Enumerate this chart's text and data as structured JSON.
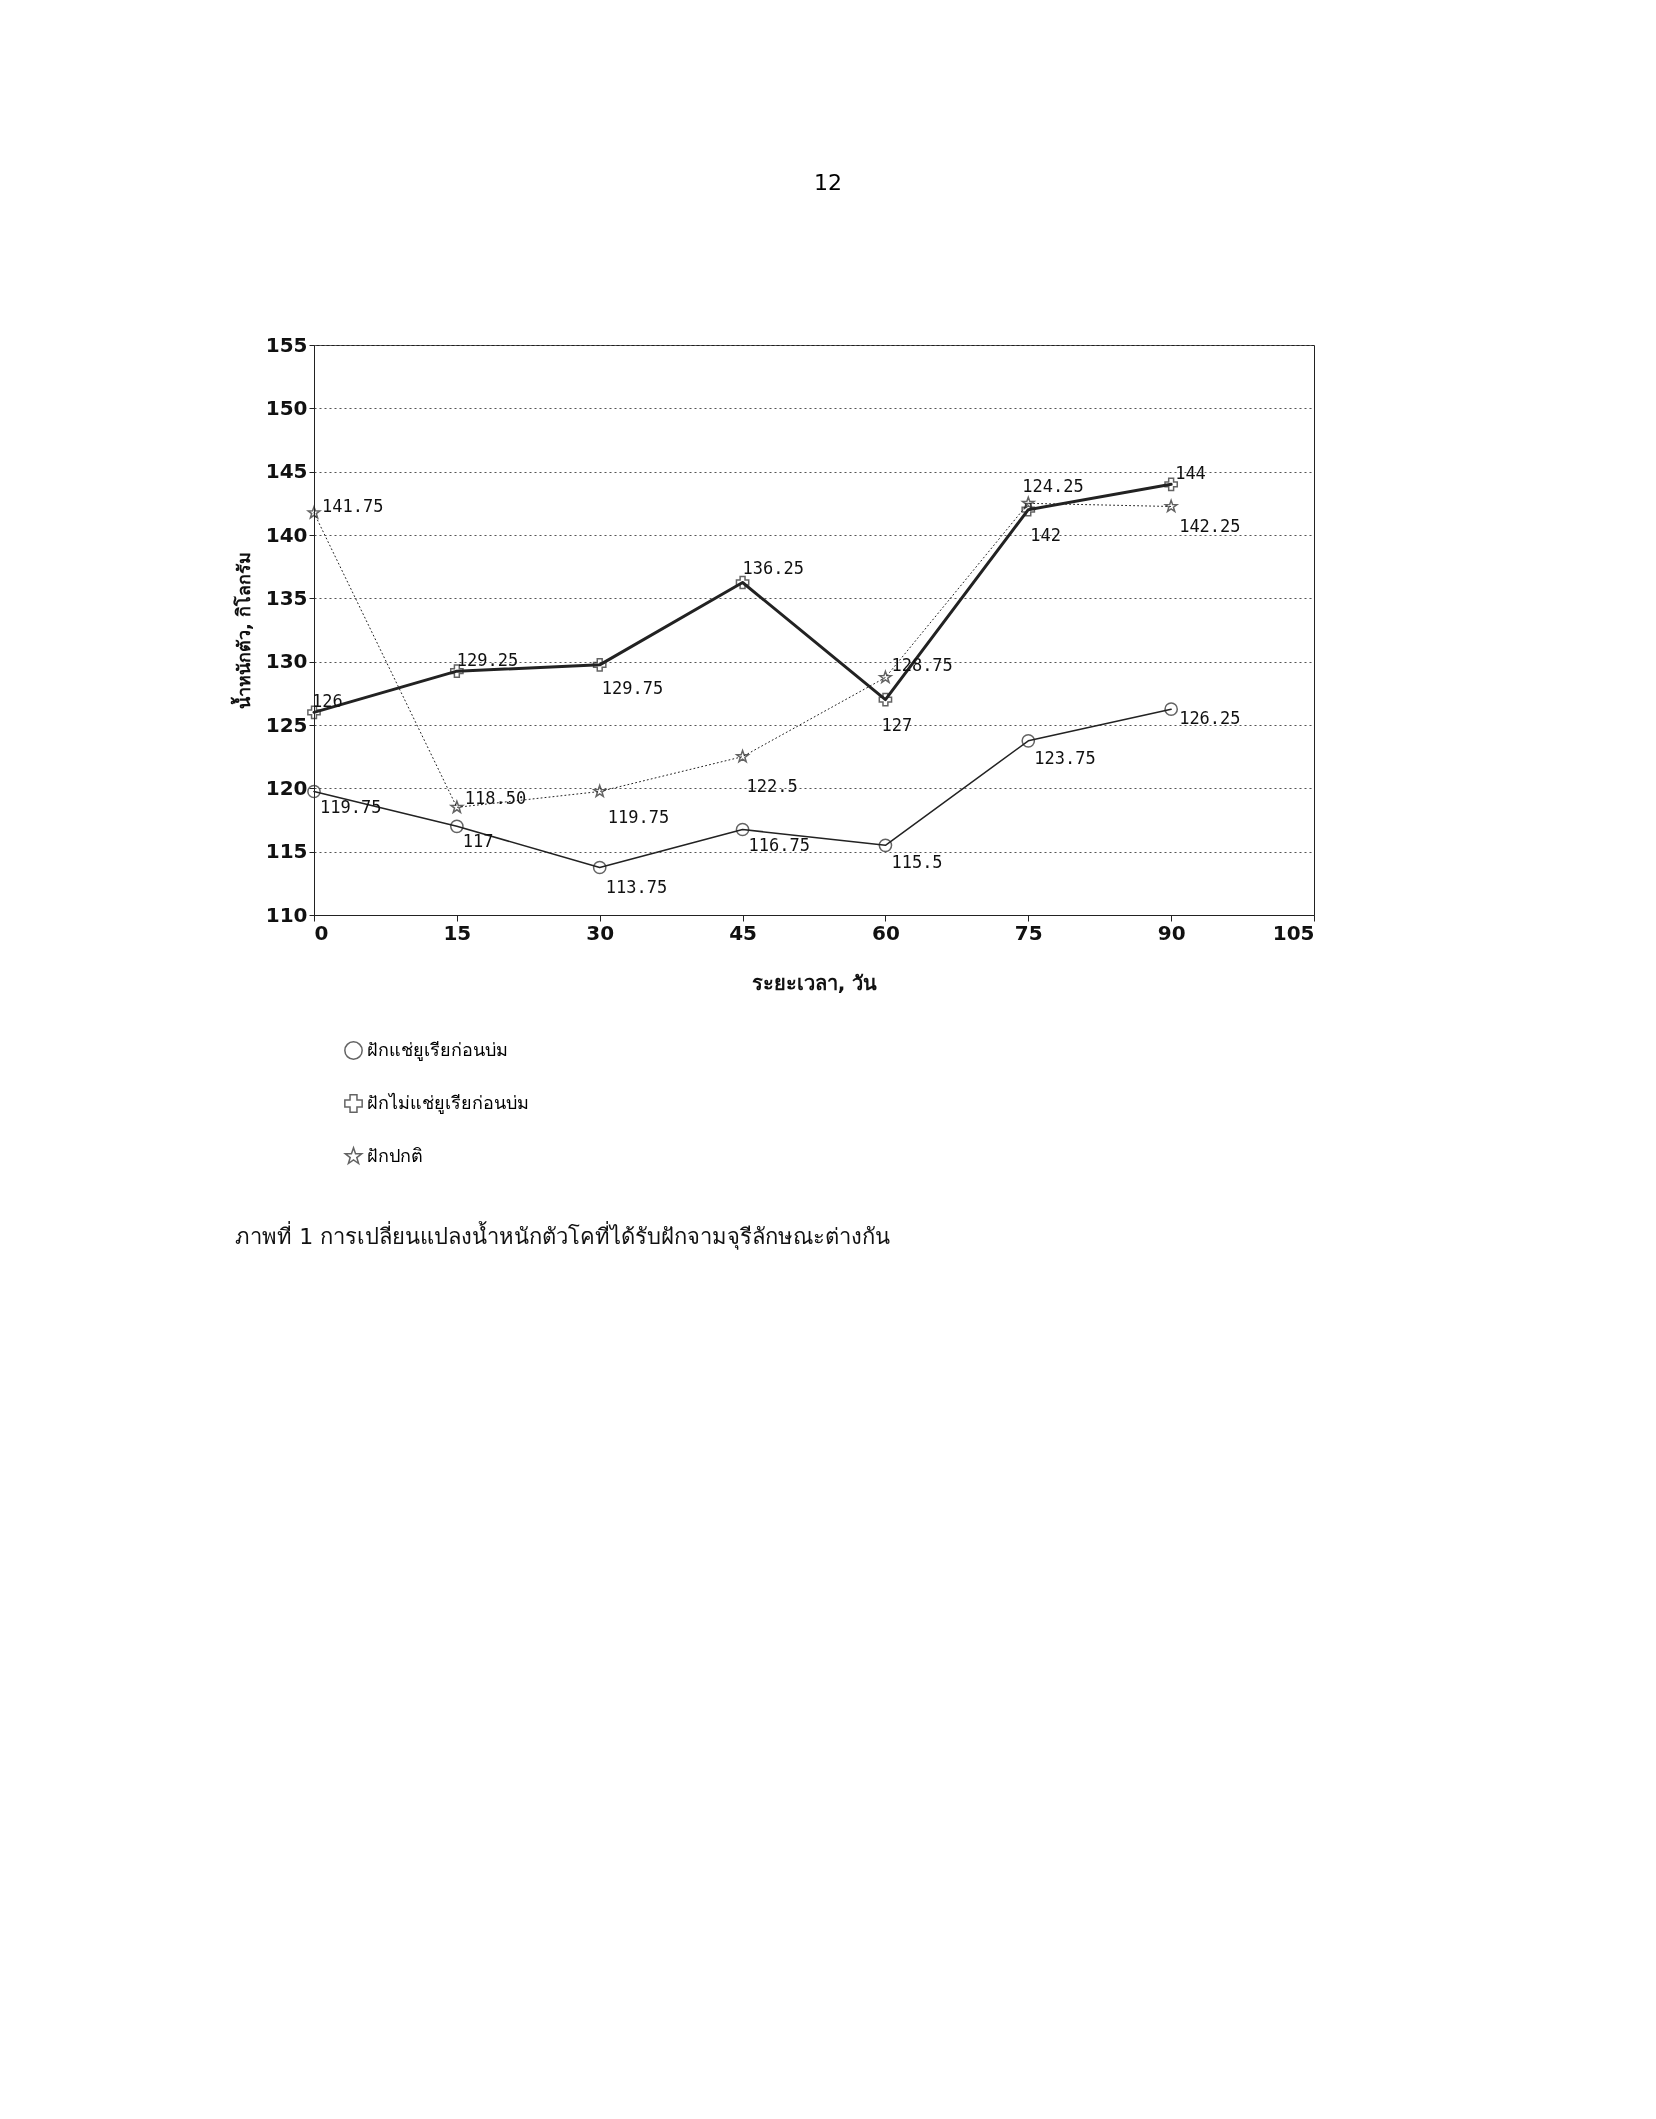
{
  "chart_data": {
    "type": "line",
    "title": "ภาพที่ 1   การเปลี่ยนแปลงน้ำหนักตัวโคที่ได้รับฝักจามจุรีลักษณะต่างกัน",
    "xlabel": "ระยะเวลา, วัน",
    "ylabel": "น้ำหนักตัว, กิโลกรัม",
    "annotations": [
      "12",
      {
        "text": "124.25",
        "x": 75,
        "y": 142.5
      }
    ],
    "x": [
      0,
      15,
      30,
      45,
      60,
      75,
      90
    ],
    "xlim": [
      0,
      105
    ],
    "xticks": [
      0,
      15,
      30,
      45,
      60,
      75,
      90,
      105
    ],
    "ylim": [
      110,
      155
    ],
    "yticks": [
      110,
      115,
      120,
      125,
      130,
      135,
      140,
      145,
      150,
      155
    ],
    "grid": "y",
    "legend": "bottom",
    "series": [
      {
        "name": "ฝักแช่ยูเรียก่อนบ่ม",
        "color": "#222222",
        "marker": "circle",
        "line_style": "solid",
        "values": [
          119.75,
          117,
          113.75,
          116.75,
          115.5,
          123.75,
          126.25
        ],
        "value_labels": [
          "119.75",
          "117",
          "113.75",
          "116.75",
          "115.5",
          "123.75",
          "126.25"
        ]
      },
      {
        "name": "ฝักไม่แช่ยูเรียก่อนบ่ม",
        "color": "#222222",
        "marker": "cross",
        "line_style": "solid",
        "values": [
          126,
          129.25,
          129.75,
          136.25,
          127,
          142,
          144
        ],
        "value_labels": [
          "126",
          "129.25",
          "129.75",
          "136.25",
          "127",
          "142",
          "144"
        ]
      },
      {
        "name": "ฝักปกติ",
        "color": "#222222",
        "marker": "star",
        "line_style": "dotted",
        "values": [
          141.75,
          118.5,
          119.75,
          122.5,
          128.75,
          142.5,
          142.25
        ],
        "value_labels": [
          "141.75",
          "118.50",
          "119.75",
          "122.5",
          "128.75",
          null,
          "142.25"
        ]
      }
    ]
  }
}
